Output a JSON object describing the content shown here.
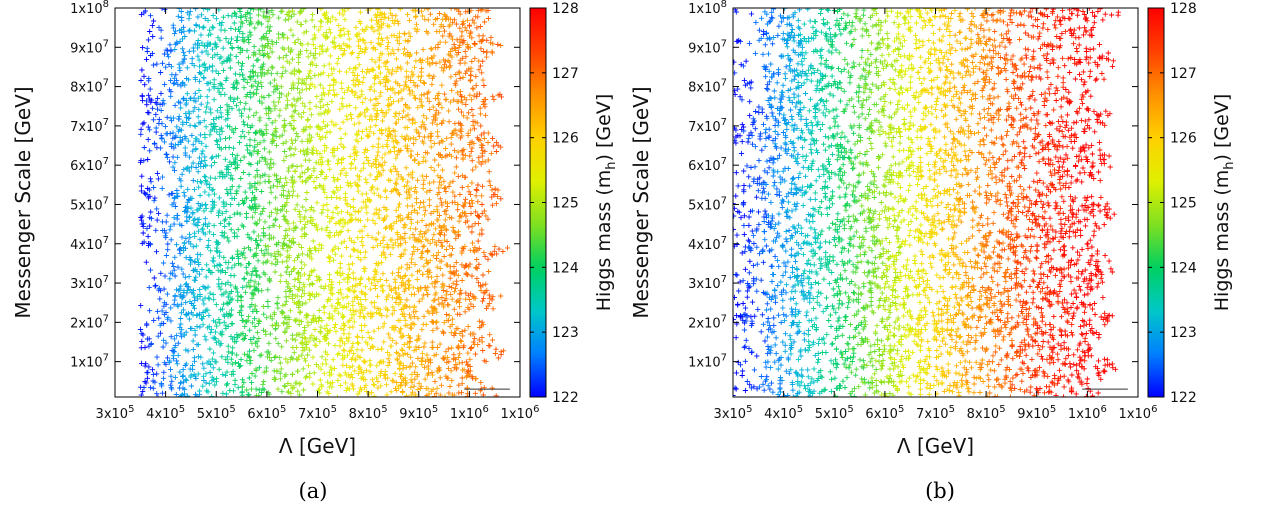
{
  "chart_data": [
    {
      "type": "scatter",
      "xlabel": "Λ [GeV]",
      "ylabel": "Messenger Scale [GeV]",
      "colorbar_label": "Higgs mass (m",
      "colorbar_label_sub": "h",
      "colorbar_label_tail": ") [GeV]",
      "caption": "(a)",
      "xlim": [
        300000,
        1100000
      ],
      "ylim": [
        1000000,
        100000000
      ],
      "x_ticks": [
        300000,
        400000,
        500000,
        600000,
        700000,
        800000,
        900000,
        1000000,
        1100000
      ],
      "x_tick_labels": [
        "3x10",
        "4x10",
        "5x10",
        "6x10",
        "7x10",
        "8x10",
        "9x10",
        "1x10",
        "1x10"
      ],
      "x_tick_exps": [
        "5",
        "5",
        "5",
        "5",
        "5",
        "5",
        "5",
        "6",
        "6"
      ],
      "y_ticks": [
        10000000,
        20000000,
        30000000,
        40000000,
        50000000,
        60000000,
        70000000,
        80000000,
        90000000,
        100000000
      ],
      "y_tick_labels": [
        "1x10",
        "2x10",
        "3x10",
        "4x10",
        "5x10",
        "6x10",
        "7x10",
        "8x10",
        "9x10",
        "1x10"
      ],
      "y_tick_exps": [
        "7",
        "7",
        "7",
        "7",
        "7",
        "7",
        "7",
        "7",
        "7",
        "8"
      ],
      "colorbar_range": [
        122,
        128
      ],
      "colorbar_ticks": [
        "122",
        "123",
        "124",
        "125",
        "126",
        "127",
        "128"
      ],
      "colormap": [
        "#0000ff",
        "#0080ff",
        "#00c8c8",
        "#00d060",
        "#80e020",
        "#e0f000",
        "#ffd000",
        "#ff9000",
        "#ff4000",
        "#ff0000"
      ],
      "marker": "+",
      "x_min_region": 350000,
      "x_max_region": 1080000,
      "mass_at_x": [
        [
          350000,
          122.0
        ],
        [
          450000,
          123.0
        ],
        [
          550000,
          124.0
        ],
        [
          650000,
          124.8
        ],
        [
          750000,
          125.5
        ],
        [
          850000,
          126.1
        ],
        [
          950000,
          126.7
        ],
        [
          1050000,
          127.1
        ]
      ],
      "bottom_line_x": [
        990000,
        1080000
      ],
      "bottom_line_y": 3000000
    },
    {
      "type": "scatter",
      "xlabel": "Λ [GeV]",
      "ylabel": "Messenger Scale [GeV]",
      "colorbar_label": "Higgs mass (m",
      "colorbar_label_sub": "h",
      "colorbar_label_tail": ") [GeV]",
      "caption": "(b)",
      "xlim": [
        300000,
        1100000
      ],
      "ylim": [
        1000000,
        100000000
      ],
      "x_ticks": [
        300000,
        400000,
        500000,
        600000,
        700000,
        800000,
        900000,
        1000000,
        1100000
      ],
      "x_tick_labels": [
        "3x10",
        "4x10",
        "5x10",
        "6x10",
        "7x10",
        "8x10",
        "9x10",
        "1x10",
        "1x10"
      ],
      "x_tick_exps": [
        "5",
        "5",
        "5",
        "5",
        "5",
        "5",
        "5",
        "6",
        "6"
      ],
      "y_ticks": [
        10000000,
        20000000,
        30000000,
        40000000,
        50000000,
        60000000,
        70000000,
        80000000,
        90000000,
        100000000
      ],
      "y_tick_labels": [
        "1x10",
        "2x10",
        "3x10",
        "4x10",
        "5x10",
        "6x10",
        "7x10",
        "8x10",
        "9x10",
        "1x10"
      ],
      "y_tick_exps": [
        "7",
        "7",
        "7",
        "7",
        "7",
        "7",
        "7",
        "7",
        "7",
        "8"
      ],
      "colorbar_range": [
        122,
        128
      ],
      "colorbar_ticks": [
        "122",
        "123",
        "124",
        "125",
        "126",
        "127",
        "128"
      ],
      "colormap": [
        "#0000ff",
        "#0080ff",
        "#00c8c8",
        "#00d060",
        "#80e020",
        "#e0f000",
        "#ffd000",
        "#ff9000",
        "#ff4000",
        "#ff0000"
      ],
      "marker": "+",
      "x_min_region": 300000,
      "x_max_region": 1070000,
      "mass_at_x": [
        [
          300000,
          122.0
        ],
        [
          400000,
          122.8
        ],
        [
          500000,
          123.9
        ],
        [
          600000,
          124.9
        ],
        [
          700000,
          125.9
        ],
        [
          800000,
          126.8
        ],
        [
          900000,
          127.5
        ],
        [
          1000000,
          128.0
        ]
      ],
      "bottom_line_x": [
        990000,
        1080000
      ],
      "bottom_line_y": 3000000
    }
  ]
}
